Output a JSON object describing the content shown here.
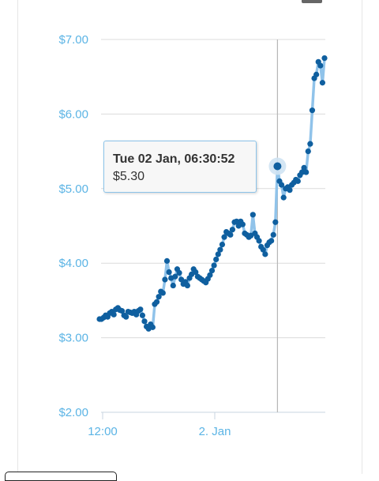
{
  "chart_data": {
    "type": "line",
    "title": "",
    "xlabel": "",
    "ylabel": "",
    "ylim": [
      2.0,
      7.0
    ],
    "y_ticks": [
      "$2.00",
      "$3.00",
      "$4.00",
      "$5.00",
      "$6.00",
      "$7.00"
    ],
    "x_ticks": [
      "12:00",
      "2. Jan"
    ],
    "grid": true,
    "colors": {
      "line": "#90c3ea",
      "marker": "#0f5f9f",
      "axis_label": "#5bb4e5",
      "grid": "#dcdcdc"
    },
    "series": [
      {
        "values": [
          3.25,
          3.25,
          3.27,
          3.3,
          3.28,
          3.33,
          3.35,
          3.31,
          3.38,
          3.4,
          3.37,
          3.36,
          3.3,
          3.28,
          3.35,
          3.34,
          3.33,
          3.35,
          3.31,
          3.36,
          3.38,
          3.3,
          3.22,
          3.15,
          3.12,
          3.18,
          3.14,
          3.45,
          3.48,
          3.55,
          3.62,
          3.6,
          3.78,
          4.03,
          3.88,
          3.8,
          3.7,
          3.82,
          3.92,
          3.87,
          3.78,
          3.72,
          3.75,
          3.7,
          3.8,
          3.85,
          3.92,
          3.88,
          3.82,
          3.8,
          3.78,
          3.76,
          3.74,
          3.79,
          3.84,
          3.9,
          3.97,
          4.05,
          4.12,
          4.18,
          4.25,
          4.35,
          4.42,
          4.4,
          4.38,
          4.45,
          4.55,
          4.56,
          4.5,
          4.56,
          4.52,
          4.4,
          4.38,
          4.35,
          4.37,
          4.65,
          4.4,
          4.35,
          4.3,
          4.22,
          4.18,
          4.12,
          4.24,
          4.28,
          4.3,
          4.38,
          4.55,
          5.3,
          5.1,
          5.05,
          4.88,
          5.0,
          5.02,
          4.98,
          5.05,
          5.08,
          5.12,
          5.1,
          5.18,
          5.22,
          5.28,
          5.22,
          5.5,
          5.6,
          6.05,
          6.48,
          6.53,
          6.7,
          6.65,
          6.42,
          6.75
        ]
      }
    ],
    "highlight_index": 87,
    "tooltip": {
      "title": "Tue 02 Jan, 06:30:52",
      "value": "$5.30"
    }
  }
}
